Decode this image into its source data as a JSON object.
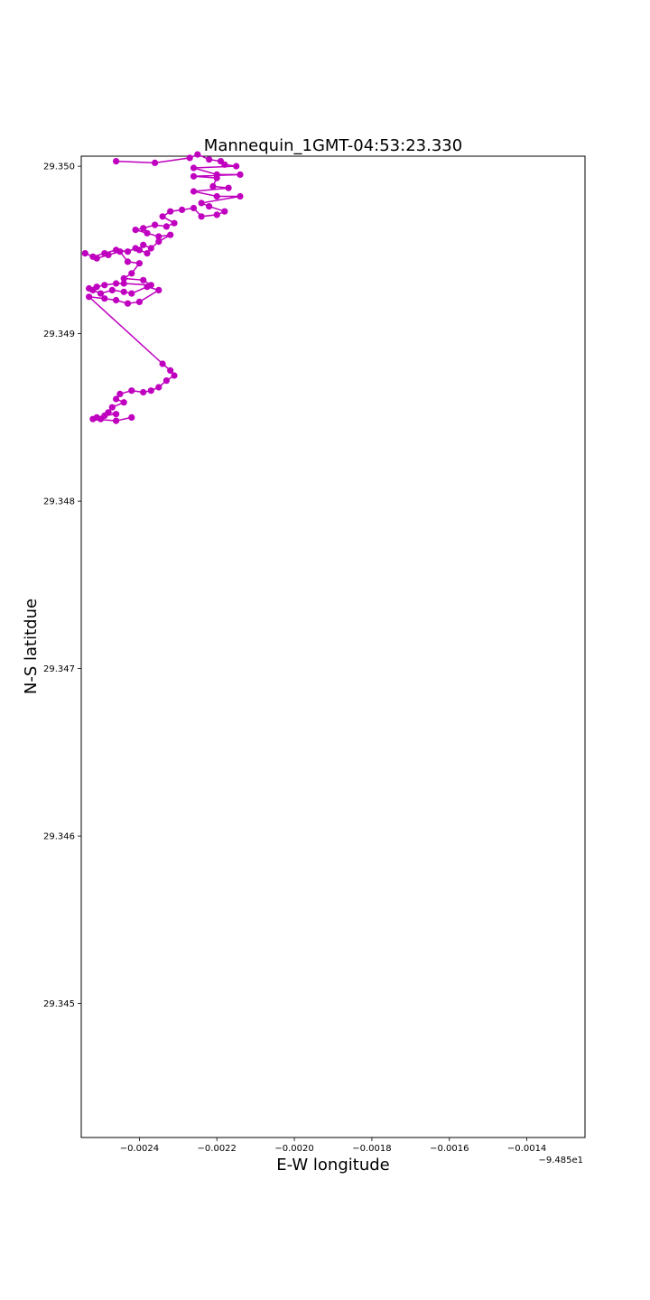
{
  "chart_data": {
    "type": "line",
    "title": "Mannequin_1GMT-04:53:23.330",
    "xlabel": "E-W longitude",
    "ylabel": "N-S latitdue",
    "x_offset_label": "−9.485e1",
    "xlim": [
      -0.00255,
      -0.00125
    ],
    "ylim": [
      29.3442,
      29.35006
    ],
    "xticks": [
      -0.0024,
      -0.0022,
      -0.002,
      -0.0018,
      -0.0016,
      -0.0014
    ],
    "xtick_labels": [
      "−0.0024",
      "−0.0022",
      "−0.0020",
      "−0.0018",
      "−0.0016",
      "−0.0014"
    ],
    "yticks": [
      29.345,
      29.346,
      29.347,
      29.348,
      29.349,
      29.35
    ],
    "ytick_labels": [
      "29.345",
      "29.346",
      "29.347",
      "29.348",
      "29.349",
      "29.350"
    ],
    "grid": false,
    "marker": "circle",
    "color": "#bf00bf",
    "series": [
      {
        "x": [
          -0.00246,
          -0.00236,
          -0.00227,
          -0.00225,
          -0.00222,
          -0.00219,
          -0.00218,
          -0.00215,
          -0.00226,
          -0.0022,
          -0.00214,
          -0.00226,
          -0.0022,
          -0.00221,
          -0.00217,
          -0.00226,
          -0.0022,
          -0.00214,
          -0.00224,
          -0.00222,
          -0.00218,
          -0.0022,
          -0.00224,
          -0.00226,
          -0.00229,
          -0.00232,
          -0.00234,
          -0.00231,
          -0.00233,
          -0.00236,
          -0.00239,
          -0.00241,
          -0.00238,
          -0.00235,
          -0.00232,
          -0.00235,
          -0.00237,
          -0.00239,
          -0.0024,
          -0.00238,
          -0.00241,
          -0.00243,
          -0.00246,
          -0.00249,
          -0.00252,
          -0.00254,
          -0.00251,
          -0.00248,
          -0.00245,
          -0.00243,
          -0.0024,
          -0.00242,
          -0.00244,
          -0.00239,
          -0.00237,
          -0.00244,
          -0.00246,
          -0.00249,
          -0.00251,
          -0.00253,
          -0.00252,
          -0.0025,
          -0.00247,
          -0.00244,
          -0.00242,
          -0.00238,
          -0.00235,
          -0.0024,
          -0.00243,
          -0.00246,
          -0.00249,
          -0.00253,
          -0.00234,
          -0.00232,
          -0.00231,
          -0.00233,
          -0.00235,
          -0.00237,
          -0.00239,
          -0.00242,
          -0.00245,
          -0.00246,
          -0.00244,
          -0.00247,
          -0.00248,
          -0.00246,
          -0.00249,
          -0.00251,
          -0.0025,
          -0.00252,
          -0.00246,
          -0.00242
        ],
        "y": [
          29.35003,
          29.35002,
          29.35005,
          29.35007,
          29.35004,
          29.35003,
          29.35001,
          29.35,
          29.34999,
          29.34995,
          29.34995,
          29.34994,
          29.34993,
          29.34988,
          29.34987,
          29.34985,
          29.34982,
          29.34982,
          29.34978,
          29.34976,
          29.34973,
          29.34971,
          29.3497,
          29.34975,
          29.34974,
          29.34973,
          29.3497,
          29.34966,
          29.34964,
          29.34965,
          29.34963,
          29.34962,
          29.3496,
          29.34958,
          29.34959,
          29.34955,
          29.34951,
          29.34953,
          29.3495,
          29.34948,
          29.34951,
          29.34949,
          29.3495,
          29.34948,
          29.34946,
          29.34948,
          29.34945,
          29.34947,
          29.34949,
          29.34943,
          29.34942,
          29.34936,
          29.34933,
          29.34932,
          29.34929,
          29.3493,
          29.3493,
          29.34929,
          29.34928,
          29.34927,
          29.34926,
          29.34924,
          29.34926,
          29.34925,
          29.34924,
          29.34928,
          29.34926,
          29.34919,
          29.34918,
          29.3492,
          29.34921,
          29.34922,
          29.34882,
          29.34878,
          29.34875,
          29.34872,
          29.34868,
          29.34866,
          29.34865,
          29.34866,
          29.34864,
          29.34861,
          29.34859,
          29.34856,
          29.34853,
          29.34852,
          29.34851,
          29.3485,
          29.34849,
          29.34849,
          29.34848,
          29.3485
        ]
      }
    ]
  }
}
